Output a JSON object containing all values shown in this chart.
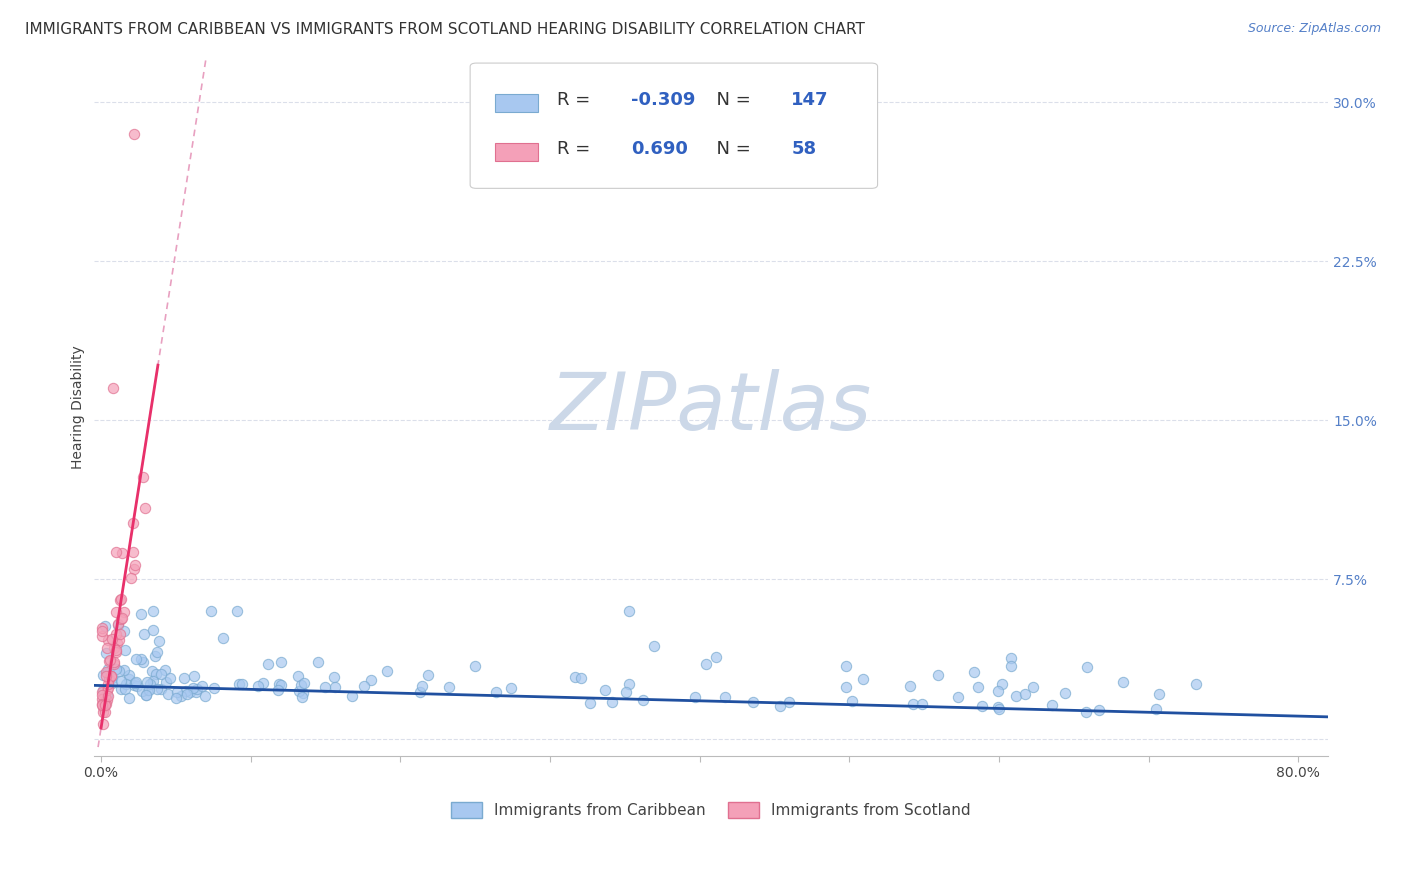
{
  "title": "IMMIGRANTS FROM CARIBBEAN VS IMMIGRANTS FROM SCOTLAND HEARING DISABILITY CORRELATION CHART",
  "source": "Source: ZipAtlas.com",
  "xlabel_caribbean": "Immigrants from Caribbean",
  "xlabel_scotland": "Immigrants from Scotland",
  "ylabel": "Hearing Disability",
  "xlim": [
    -0.005,
    0.82
  ],
  "ylim": [
    -0.008,
    0.32
  ],
  "xticks": [
    0.0,
    0.1,
    0.2,
    0.3,
    0.4,
    0.5,
    0.6,
    0.7,
    0.8
  ],
  "yticks": [
    0.0,
    0.075,
    0.15,
    0.225,
    0.3
  ],
  "caribbean_R": -0.309,
  "caribbean_N": 147,
  "scotland_R": 0.69,
  "scotland_N": 58,
  "caribbean_color": "#a8c8f0",
  "caribbean_edge_color": "#7aaad0",
  "scotland_color": "#f4a0b8",
  "scotland_edge_color": "#e07090",
  "caribbean_line_color": "#2050a0",
  "scotland_line_color": "#e8306a",
  "scotland_dash_color": "#e8a0c0",
  "background_color": "#ffffff",
  "grid_color": "#d8dce8",
  "watermark_color": "#ccd8e8",
  "title_fontsize": 11,
  "source_fontsize": 9,
  "axis_label_fontsize": 10,
  "tick_fontsize": 10,
  "legend_fontsize": 13
}
